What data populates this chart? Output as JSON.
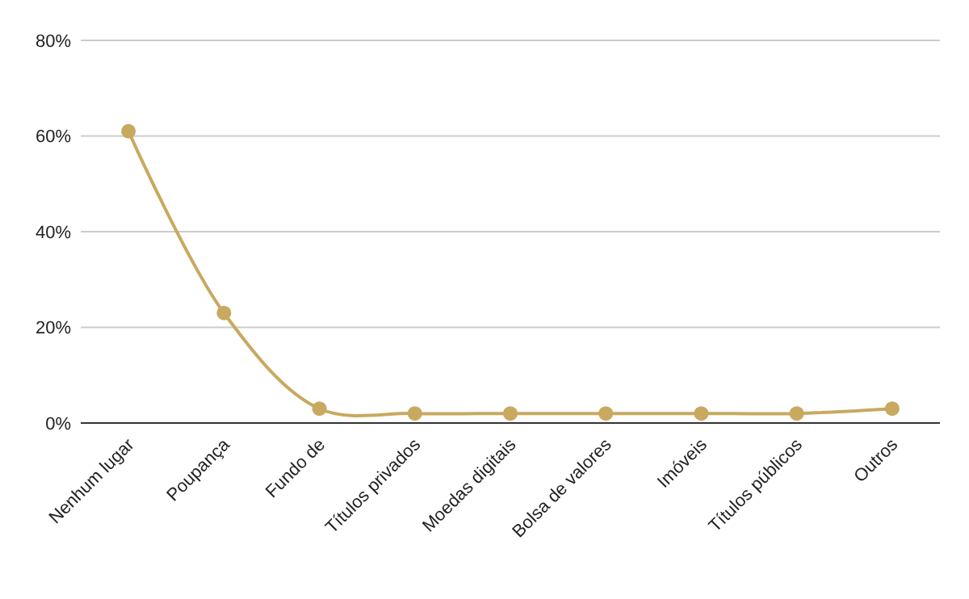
{
  "chart_data": {
    "type": "line",
    "categories": [
      "Nenhum lugar",
      "Poupança",
      "Fundo de",
      "Títulos privados",
      "Moedas digitais",
      "Bolsa de valores",
      "Imóveis",
      "Títulos públicos",
      "Outros"
    ],
    "series": [
      {
        "color": "#c8a95f",
        "values": [
          61,
          23,
          3,
          2,
          2,
          2,
          2,
          2,
          3
        ]
      }
    ],
    "ylim": [
      0,
      80
    ],
    "yticks": [
      {
        "value": 0,
        "label": "0%"
      },
      {
        "value": 20,
        "label": "20%"
      },
      {
        "value": 40,
        "label": "40%"
      },
      {
        "value": 60,
        "label": "60%"
      },
      {
        "value": 80,
        "label": "80%"
      }
    ],
    "grid": "y",
    "marker": "circle"
  }
}
